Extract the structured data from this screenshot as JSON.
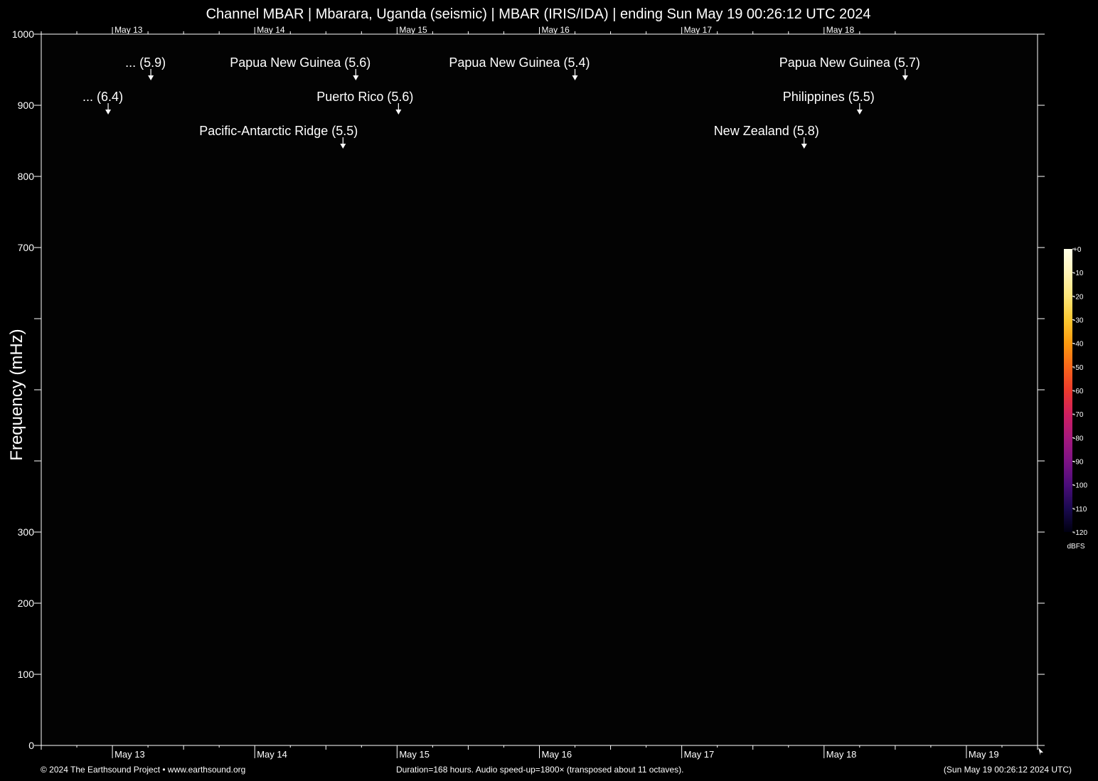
{
  "title": "Channel MBAR | Mbarara, Uganda (seismic) | MBAR (IRIS/IDA) | ending Sun May 19 00:26:12 UTC 2024",
  "footer": {
    "left": "© 2024 The Earthsound Project • www.earthsound.org",
    "center": "Duration=168 hours. Audio speed-up=1800× (transposed about 11 octaves).",
    "right": "(Sun May 19 00:26:12 2024 UTC)"
  },
  "chart_data": {
    "type": "heatmap",
    "title": "Channel MBAR | Mbarara, Uganda (seismic) | MBAR (IRIS/IDA) | ending Sun May 19 00:26:12 UTC 2024",
    "ylabel": "Frequency (mHz)",
    "ylim": [
      0,
      1000
    ],
    "y_ticks": [
      0,
      100,
      200,
      300,
      400,
      500,
      600,
      700,
      800,
      900,
      1000
    ],
    "y_tick_labels": [
      "0",
      "100",
      "200",
      "300",
      "",
      "",
      "",
      "700",
      "800",
      "900",
      "1000"
    ],
    "x_range_days": [
      -0.5,
      6.5
    ],
    "x_ticks": [
      {
        "day": 0,
        "label": "May 13"
      },
      {
        "day": 1,
        "label": "May 14"
      },
      {
        "day": 2,
        "label": "May 15"
      },
      {
        "day": 3,
        "label": "May 16"
      },
      {
        "day": 4,
        "label": "May 17"
      },
      {
        "day": 5,
        "label": "May 18"
      },
      {
        "day": 6,
        "label": "May 19"
      }
    ],
    "events": [
      {
        "label": "... (6.4)",
        "day": -0.03,
        "row": 2
      },
      {
        "label": "... (5.9)",
        "day": 0.27,
        "row": 1
      },
      {
        "label": "Papua New Guinea (5.6)",
        "day": 1.71,
        "row": 1
      },
      {
        "label": "Puerto Rico (5.6)",
        "day": 2.01,
        "row": 2
      },
      {
        "label": "Pacific-Antarctic Ridge (5.5)",
        "day": 1.62,
        "row": 3
      },
      {
        "label": "Papua New Guinea (5.4)",
        "day": 3.25,
        "row": 1
      },
      {
        "label": "Papua New Guinea (5.7)",
        "day": 5.57,
        "row": 1
      },
      {
        "label": "Philippines (5.5)",
        "day": 5.25,
        "row": 2
      },
      {
        "label": "New Zealand (5.8)",
        "day": 4.86,
        "row": 3
      }
    ],
    "colorbar": {
      "unit": "dBFS",
      "range": [
        -120,
        0
      ],
      "ticks": [
        "+0",
        "-10",
        "-20",
        "-30",
        "-40",
        "-50",
        "-60",
        "-70",
        "-80",
        "-90",
        "-100",
        "-110",
        "-120"
      ],
      "colors": [
        "#000010",
        "#1a0a50",
        "#4b0d7a",
        "#7d1385",
        "#a6197d",
        "#cf1f5f",
        "#ec3a2d",
        "#f8661a",
        "#fc9a0f",
        "#fbc831",
        "#fde67a",
        "#fff4b8",
        "#ffffe8"
      ]
    },
    "grid": false
  }
}
